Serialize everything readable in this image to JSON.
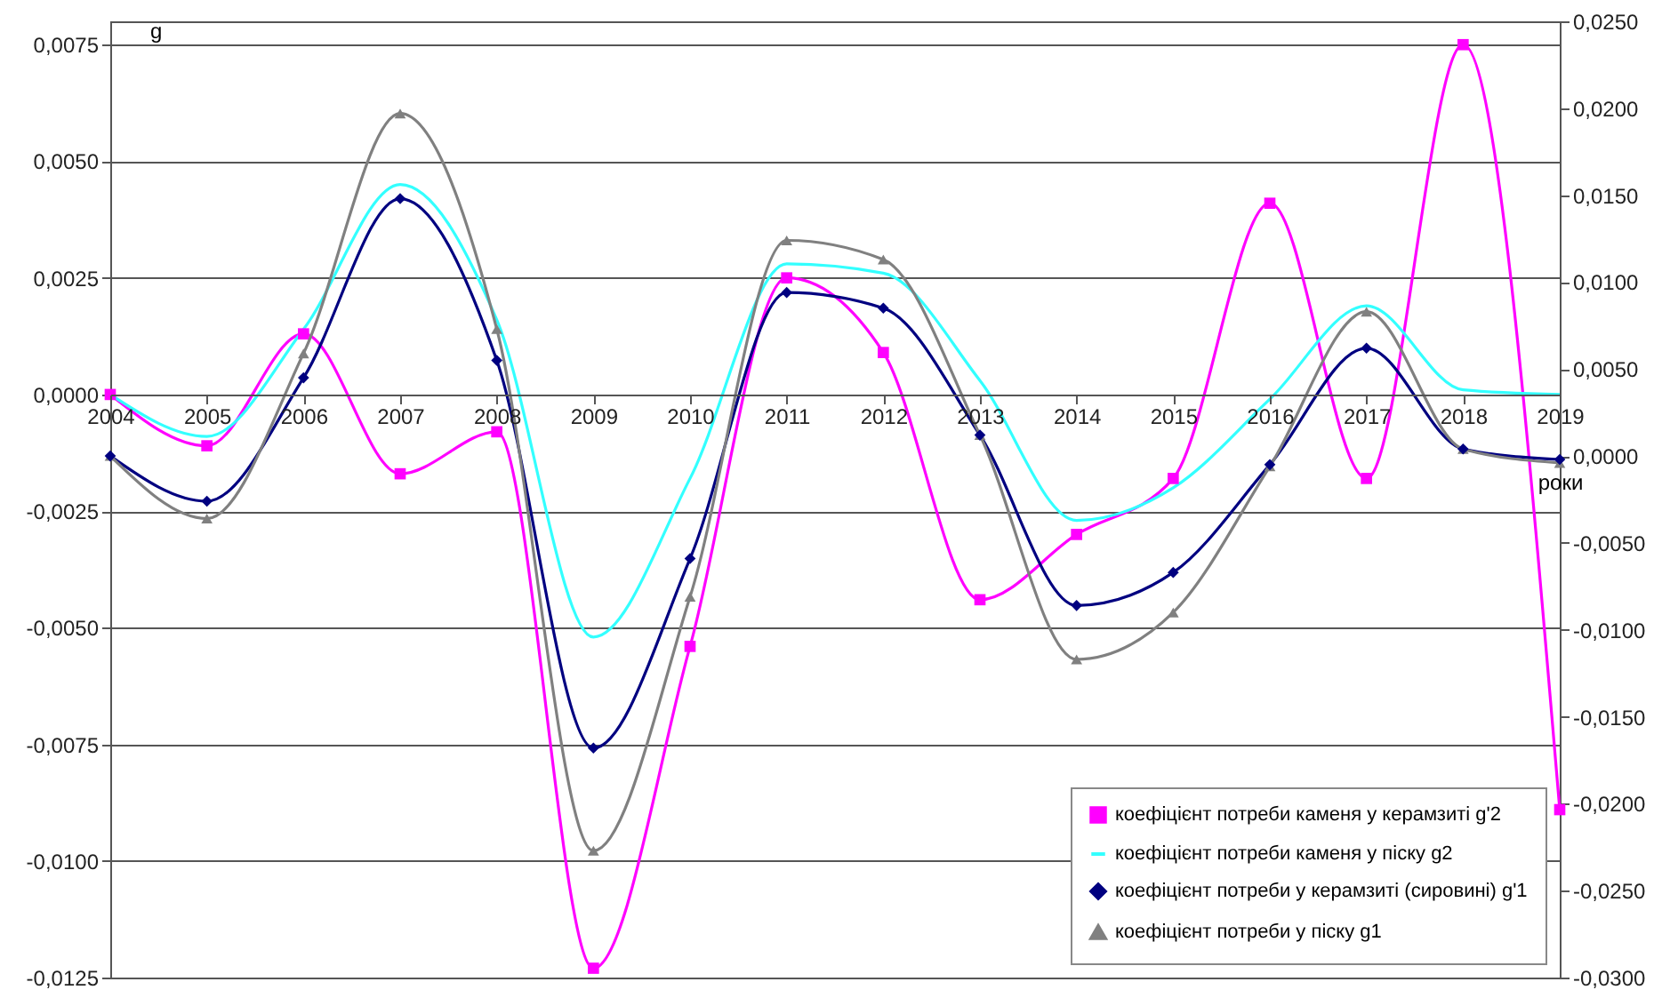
{
  "chart_data": {
    "type": "line",
    "ylabel": "g",
    "xlabel": "роки",
    "categories": [
      "2004",
      "2005",
      "2006",
      "2007",
      "2008",
      "2009",
      "2010",
      "2011",
      "2012",
      "2013",
      "2014",
      "2015",
      "2016",
      "2017",
      "2018",
      "2019"
    ],
    "ylim": [
      -0.0125,
      0.008
    ],
    "yticks": [
      {
        "value": -0.0125,
        "label": "-0,0125"
      },
      {
        "value": -0.01,
        "label": "-0,0100"
      },
      {
        "value": -0.0075,
        "label": "-0,0075"
      },
      {
        "value": -0.005,
        "label": "-0,0050"
      },
      {
        "value": -0.0025,
        "label": "-0,0025"
      },
      {
        "value": 0,
        "label": "0,0000"
      },
      {
        "value": 0.0025,
        "label": "0,0025"
      },
      {
        "value": 0.005,
        "label": "0,0050"
      },
      {
        "value": 0.0075,
        "label": "0,0075"
      }
    ],
    "y2lim": [
      -0.03,
      0.025
    ],
    "y2ticks": [
      {
        "value": -0.03,
        "label": "-0,0300"
      },
      {
        "value": -0.025,
        "label": "-0,0250"
      },
      {
        "value": -0.02,
        "label": "-0,0200"
      },
      {
        "value": -0.015,
        "label": "-0,0150"
      },
      {
        "value": -0.01,
        "label": "-0,0100"
      },
      {
        "value": -0.005,
        "label": "-0,0050"
      },
      {
        "value": 0,
        "label": "0,0000"
      },
      {
        "value": 0.005,
        "label": "0,0050"
      },
      {
        "value": 0.01,
        "label": "0,0100"
      },
      {
        "value": 0.015,
        "label": "0,0150"
      },
      {
        "value": 0.02,
        "label": "0,0200"
      },
      {
        "value": 0.025,
        "label": "0,0250"
      }
    ],
    "grid": "y",
    "legend": "bottom right",
    "line_style": "solid",
    "series": [
      {
        "name": "коефіцієнт потреби каменя у керамзиті g'2",
        "color": "#ff00ff",
        "marker": "square",
        "values": [
          0,
          -0.0011,
          0.0013,
          -0.0017,
          -0.0008,
          -0.0123,
          -0.0054,
          0.0025,
          0.0009,
          -0.0044,
          -0.003,
          -0.0018,
          0.0041,
          -0.0018,
          0.0075,
          -0.0089
        ]
      },
      {
        "name": "коефіцієнт потреби каменя у піску g2",
        "color": "#33ffff",
        "marker": "none",
        "values": [
          0,
          -0.0009,
          0.0014,
          0.0045,
          0.0016,
          -0.0052,
          -0.0018,
          0.0028,
          0.0026,
          0.0003,
          -0.0027,
          -0.002,
          -0.0001,
          0.0019,
          0.0001,
          0
        ]
      },
      {
        "name": "коефіцієнт потреби у керамзиті (сировині) g'1",
        "color": "#000080",
        "marker": "diamond",
        "axis": "y2",
        "values": [
          0,
          -0.0026,
          0.0045,
          0.0148,
          0.0055,
          -0.0168,
          -0.0059,
          0.0094,
          0.0085,
          0.0012,
          -0.0086,
          -0.0067,
          -0.0005,
          0.0062,
          0.0004,
          -0.0002
        ]
      },
      {
        "name": "коефіцієнт потреби у піску g1",
        "color": "#808080",
        "marker": "triangle",
        "axis": "y2",
        "values": [
          0,
          -0.0036,
          0.0059,
          0.0197,
          0.0073,
          -0.0227,
          -0.0081,
          0.0124,
          0.0113,
          0.0012,
          -0.0117,
          -0.009,
          -0.0006,
          0.0083,
          0.0004,
          -0.0004
        ]
      }
    ]
  }
}
